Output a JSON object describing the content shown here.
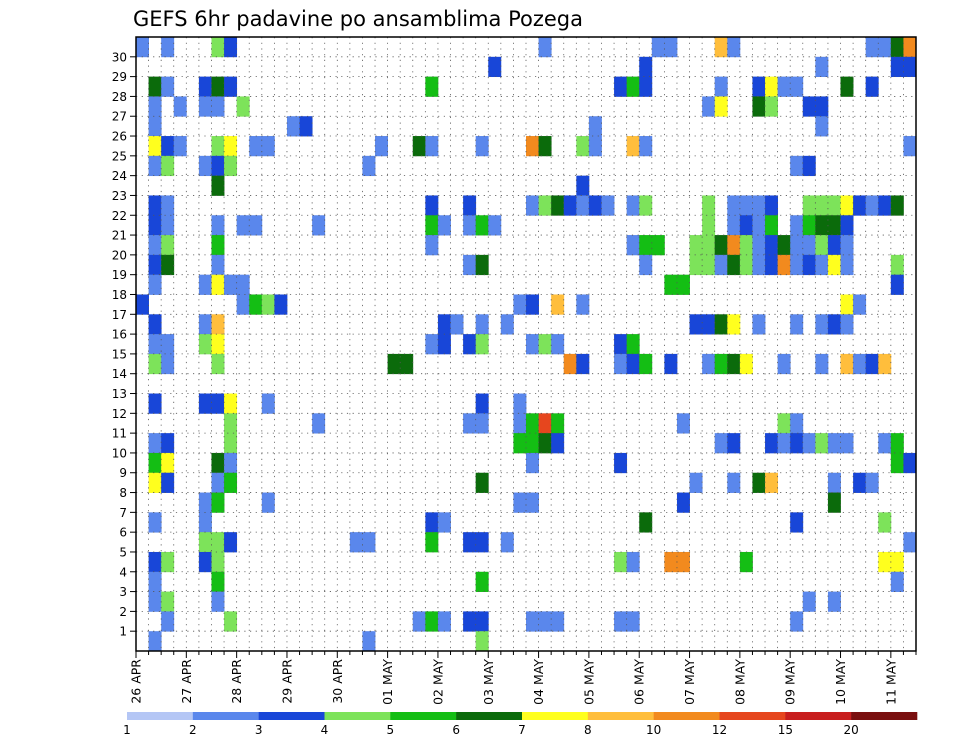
{
  "chart_data": {
    "type": "heatmap",
    "title": "GEFS 6hr padavine po ansamblima Pozega",
    "x_labels": [
      "26 APR",
      "27 APR",
      "28 APR",
      "29 APR",
      "30 APR",
      "01 MAY",
      "02 MAY",
      "03 MAY",
      "04 MAY",
      "05 MAY",
      "06 MAY",
      "07 MAY",
      "08 MAY",
      "09 MAY",
      "10 MAY",
      "11 MAY"
    ],
    "y_ticks": [
      1,
      2,
      3,
      4,
      5,
      6,
      7,
      8,
      9,
      10,
      11,
      12,
      13,
      14,
      15,
      16,
      17,
      18,
      19,
      20,
      21,
      22,
      23,
      24,
      25,
      26,
      27,
      28,
      29,
      30
    ],
    "steps_per_day": 4,
    "legend": {
      "labels": [
        "1",
        "2",
        "3",
        "4",
        "5",
        "6",
        "7",
        "8",
        "10",
        "12",
        "15",
        "20"
      ],
      "colors": [
        "#b4c6f5",
        "#5a87ec",
        "#1846d8",
        "#7de35a",
        "#14be14",
        "#0b6b0b",
        "#ffff1e",
        "#ffbe3c",
        "#f28a1e",
        "#e6461e",
        "#c81e1e",
        "#7a0f0f"
      ]
    },
    "grid": true,
    "cells": [
      [
        30,
        0,
        1
      ],
      [
        30,
        2,
        1
      ],
      [
        30,
        6,
        3
      ],
      [
        30,
        7,
        2
      ],
      [
        30,
        32,
        1
      ],
      [
        30,
        41,
        1
      ],
      [
        30,
        42,
        1
      ],
      [
        30,
        46,
        7
      ],
      [
        30,
        47,
        1
      ],
      [
        30,
        58,
        1
      ],
      [
        30,
        59,
        1
      ],
      [
        30,
        60,
        5
      ],
      [
        30,
        61,
        8
      ],
      [
        29,
        28,
        2
      ],
      [
        29,
        40,
        2
      ],
      [
        29,
        54,
        1
      ],
      [
        29,
        60,
        2
      ],
      [
        29,
        61,
        2
      ],
      [
        28,
        1,
        5
      ],
      [
        28,
        2,
        1
      ],
      [
        28,
        5,
        2
      ],
      [
        28,
        6,
        5
      ],
      [
        28,
        7,
        2
      ],
      [
        28,
        23,
        4
      ],
      [
        28,
        38,
        2
      ],
      [
        28,
        39,
        4
      ],
      [
        28,
        40,
        2
      ],
      [
        28,
        46,
        1
      ],
      [
        28,
        49,
        2
      ],
      [
        28,
        50,
        6
      ],
      [
        28,
        51,
        1
      ],
      [
        28,
        52,
        1
      ],
      [
        28,
        56,
        5
      ],
      [
        28,
        58,
        2
      ],
      [
        27,
        1,
        1
      ],
      [
        27,
        3,
        1
      ],
      [
        27,
        5,
        1
      ],
      [
        27,
        6,
        1
      ],
      [
        27,
        8,
        3
      ],
      [
        27,
        45,
        1
      ],
      [
        27,
        46,
        6
      ],
      [
        27,
        49,
        5
      ],
      [
        27,
        50,
        3
      ],
      [
        27,
        53,
        2
      ],
      [
        27,
        54,
        2
      ],
      [
        26,
        1,
        1
      ],
      [
        26,
        12,
        1
      ],
      [
        26,
        13,
        2
      ],
      [
        26,
        36,
        1
      ],
      [
        26,
        54,
        1
      ],
      [
        25,
        1,
        6
      ],
      [
        25,
        2,
        2
      ],
      [
        25,
        3,
        1
      ],
      [
        25,
        6,
        3
      ],
      [
        25,
        7,
        6
      ],
      [
        25,
        9,
        1
      ],
      [
        25,
        10,
        1
      ],
      [
        25,
        19,
        1
      ],
      [
        25,
        22,
        5
      ],
      [
        25,
        23,
        1
      ],
      [
        25,
        27,
        1
      ],
      [
        25,
        31,
        8
      ],
      [
        25,
        32,
        5
      ],
      [
        25,
        35,
        3
      ],
      [
        25,
        36,
        1
      ],
      [
        25,
        39,
        7
      ],
      [
        25,
        40,
        1
      ],
      [
        25,
        61,
        1
      ],
      [
        24,
        1,
        1
      ],
      [
        24,
        2,
        3
      ],
      [
        24,
        5,
        1
      ],
      [
        24,
        6,
        2
      ],
      [
        24,
        7,
        3
      ],
      [
        24,
        18,
        1
      ],
      [
        24,
        52,
        1
      ],
      [
        24,
        53,
        2
      ],
      [
        23,
        6,
        5
      ],
      [
        23,
        35,
        2
      ],
      [
        22,
        1,
        2
      ],
      [
        22,
        2,
        1
      ],
      [
        22,
        23,
        2
      ],
      [
        22,
        26,
        2
      ],
      [
        22,
        31,
        1
      ],
      [
        22,
        32,
        3
      ],
      [
        22,
        33,
        5
      ],
      [
        22,
        34,
        2
      ],
      [
        22,
        35,
        1
      ],
      [
        22,
        36,
        2
      ],
      [
        22,
        37,
        1
      ],
      [
        22,
        39,
        1
      ],
      [
        22,
        40,
        3
      ],
      [
        22,
        45,
        3
      ],
      [
        22,
        47,
        1
      ],
      [
        22,
        48,
        1
      ],
      [
        22,
        49,
        1
      ],
      [
        22,
        50,
        2
      ],
      [
        22,
        53,
        3
      ],
      [
        22,
        54,
        3
      ],
      [
        22,
        55,
        3
      ],
      [
        22,
        56,
        6
      ],
      [
        22,
        57,
        2
      ],
      [
        22,
        58,
        1
      ],
      [
        22,
        59,
        2
      ],
      [
        22,
        60,
        5
      ],
      [
        21,
        1,
        2
      ],
      [
        21,
        2,
        1
      ],
      [
        21,
        6,
        1
      ],
      [
        21,
        8,
        1
      ],
      [
        21,
        9,
        1
      ],
      [
        21,
        14,
        1
      ],
      [
        21,
        23,
        4
      ],
      [
        21,
        24,
        1
      ],
      [
        21,
        26,
        1
      ],
      [
        21,
        27,
        4
      ],
      [
        21,
        28,
        1
      ],
      [
        21,
        45,
        3
      ],
      [
        21,
        47,
        1
      ],
      [
        21,
        48,
        2
      ],
      [
        21,
        49,
        1
      ],
      [
        21,
        50,
        4
      ],
      [
        21,
        52,
        1
      ],
      [
        21,
        53,
        4
      ],
      [
        21,
        54,
        5
      ],
      [
        21,
        55,
        5
      ],
      [
        21,
        56,
        2
      ],
      [
        20,
        1,
        1
      ],
      [
        20,
        2,
        3
      ],
      [
        20,
        6,
        4
      ],
      [
        20,
        23,
        1
      ],
      [
        20,
        39,
        1
      ],
      [
        20,
        40,
        4
      ],
      [
        20,
        41,
        4
      ],
      [
        20,
        44,
        3
      ],
      [
        20,
        45,
        3
      ],
      [
        20,
        46,
        5
      ],
      [
        20,
        47,
        8
      ],
      [
        20,
        48,
        3
      ],
      [
        20,
        49,
        1
      ],
      [
        20,
        50,
        2
      ],
      [
        20,
        51,
        5
      ],
      [
        20,
        52,
        1
      ],
      [
        20,
        53,
        1
      ],
      [
        20,
        54,
        3
      ],
      [
        20,
        55,
        2
      ],
      [
        20,
        56,
        1
      ],
      [
        19,
        1,
        2
      ],
      [
        19,
        2,
        5
      ],
      [
        19,
        6,
        1
      ],
      [
        19,
        26,
        1
      ],
      [
        19,
        27,
        5
      ],
      [
        19,
        40,
        1
      ],
      [
        19,
        44,
        3
      ],
      [
        19,
        45,
        3
      ],
      [
        19,
        46,
        1
      ],
      [
        19,
        47,
        5
      ],
      [
        19,
        48,
        3
      ],
      [
        19,
        49,
        1
      ],
      [
        19,
        50,
        2
      ],
      [
        19,
        51,
        8
      ],
      [
        19,
        52,
        1
      ],
      [
        19,
        53,
        2
      ],
      [
        19,
        54,
        1
      ],
      [
        19,
        55,
        6
      ],
      [
        19,
        56,
        1
      ],
      [
        19,
        60,
        3
      ],
      [
        18,
        1,
        1
      ],
      [
        18,
        5,
        1
      ],
      [
        18,
        6,
        6
      ],
      [
        18,
        7,
        1
      ],
      [
        18,
        8,
        1
      ],
      [
        18,
        42,
        4
      ],
      [
        18,
        43,
        4
      ],
      [
        18,
        60,
        2
      ],
      [
        17,
        0,
        2
      ],
      [
        17,
        8,
        1
      ],
      [
        17,
        9,
        4
      ],
      [
        17,
        10,
        3
      ],
      [
        17,
        11,
        2
      ],
      [
        17,
        30,
        1
      ],
      [
        17,
        31,
        2
      ],
      [
        17,
        33,
        7
      ],
      [
        17,
        35,
        1
      ],
      [
        17,
        56,
        6
      ],
      [
        17,
        57,
        1
      ],
      [
        16,
        1,
        2
      ],
      [
        16,
        5,
        1
      ],
      [
        16,
        6,
        7
      ],
      [
        16,
        24,
        2
      ],
      [
        16,
        25,
        1
      ],
      [
        16,
        27,
        1
      ],
      [
        16,
        29,
        1
      ],
      [
        16,
        44,
        2
      ],
      [
        16,
        45,
        2
      ],
      [
        16,
        46,
        5
      ],
      [
        16,
        47,
        6
      ],
      [
        16,
        49,
        1
      ],
      [
        16,
        52,
        1
      ],
      [
        16,
        54,
        1
      ],
      [
        16,
        55,
        2
      ],
      [
        16,
        56,
        1
      ],
      [
        15,
        1,
        1
      ],
      [
        15,
        2,
        1
      ],
      [
        15,
        5,
        3
      ],
      [
        15,
        6,
        6
      ],
      [
        15,
        23,
        1
      ],
      [
        15,
        24,
        2
      ],
      [
        15,
        26,
        2
      ],
      [
        15,
        27,
        3
      ],
      [
        15,
        31,
        1
      ],
      [
        15,
        32,
        3
      ],
      [
        15,
        33,
        1
      ],
      [
        15,
        38,
        2
      ],
      [
        15,
        39,
        4
      ],
      [
        14,
        1,
        3
      ],
      [
        14,
        2,
        1
      ],
      [
        14,
        6,
        3
      ],
      [
        14,
        20,
        5
      ],
      [
        14,
        21,
        5
      ],
      [
        14,
        34,
        8
      ],
      [
        14,
        35,
        2
      ],
      [
        14,
        38,
        1
      ],
      [
        14,
        39,
        2
      ],
      [
        14,
        40,
        4
      ],
      [
        14,
        42,
        2
      ],
      [
        14,
        45,
        1
      ],
      [
        14,
        46,
        4
      ],
      [
        14,
        47,
        5
      ],
      [
        14,
        48,
        6
      ],
      [
        14,
        51,
        1
      ],
      [
        14,
        54,
        1
      ],
      [
        14,
        56,
        7
      ],
      [
        14,
        57,
        1
      ],
      [
        14,
        58,
        2
      ],
      [
        14,
        59,
        7
      ],
      [
        12,
        1,
        2
      ],
      [
        12,
        5,
        2
      ],
      [
        12,
        6,
        2
      ],
      [
        12,
        7,
        6
      ],
      [
        12,
        10,
        1
      ],
      [
        12,
        27,
        2
      ],
      [
        12,
        30,
        1
      ],
      [
        11,
        7,
        3
      ],
      [
        11,
        14,
        1
      ],
      [
        11,
        26,
        1
      ],
      [
        11,
        27,
        1
      ],
      [
        11,
        30,
        1
      ],
      [
        11,
        31,
        4
      ],
      [
        11,
        32,
        9
      ],
      [
        11,
        33,
        4
      ],
      [
        11,
        43,
        1
      ],
      [
        11,
        51,
        3
      ],
      [
        11,
        52,
        1
      ],
      [
        10,
        1,
        1
      ],
      [
        10,
        2,
        2
      ],
      [
        10,
        7,
        3
      ],
      [
        10,
        30,
        4
      ],
      [
        10,
        31,
        4
      ],
      [
        10,
        32,
        5
      ],
      [
        10,
        33,
        2
      ],
      [
        10,
        46,
        1
      ],
      [
        10,
        47,
        2
      ],
      [
        10,
        50,
        2
      ],
      [
        10,
        51,
        1
      ],
      [
        10,
        52,
        2
      ],
      [
        10,
        53,
        1
      ],
      [
        10,
        54,
        3
      ],
      [
        10,
        55,
        1
      ],
      [
        10,
        56,
        1
      ],
      [
        10,
        59,
        1
      ],
      [
        10,
        60,
        4
      ],
      [
        9,
        1,
        4
      ],
      [
        9,
        2,
        6
      ],
      [
        9,
        6,
        5
      ],
      [
        9,
        7,
        1
      ],
      [
        9,
        31,
        1
      ],
      [
        9,
        38,
        2
      ],
      [
        9,
        60,
        4
      ],
      [
        9,
        61,
        2
      ],
      [
        8,
        1,
        6
      ],
      [
        8,
        2,
        2
      ],
      [
        8,
        6,
        1
      ],
      [
        8,
        7,
        4
      ],
      [
        8,
        27,
        5
      ],
      [
        8,
        44,
        1
      ],
      [
        8,
        47,
        1
      ],
      [
        8,
        49,
        5
      ],
      [
        8,
        50,
        7
      ],
      [
        8,
        55,
        1
      ],
      [
        8,
        57,
        2
      ],
      [
        8,
        58,
        1
      ],
      [
        7,
        5,
        1
      ],
      [
        7,
        6,
        4
      ],
      [
        7,
        10,
        1
      ],
      [
        7,
        30,
        1
      ],
      [
        7,
        31,
        1
      ],
      [
        7,
        43,
        2
      ],
      [
        7,
        55,
        5
      ],
      [
        6,
        1,
        1
      ],
      [
        6,
        5,
        1
      ],
      [
        6,
        23,
        2
      ],
      [
        6,
        24,
        1
      ],
      [
        6,
        40,
        5
      ],
      [
        6,
        52,
        2
      ],
      [
        6,
        59,
        3
      ],
      [
        5,
        5,
        3
      ],
      [
        5,
        6,
        3
      ],
      [
        5,
        7,
        2
      ],
      [
        5,
        17,
        1
      ],
      [
        5,
        18,
        1
      ],
      [
        5,
        23,
        4
      ],
      [
        5,
        26,
        2
      ],
      [
        5,
        27,
        2
      ],
      [
        5,
        29,
        1
      ],
      [
        5,
        61,
        1
      ],
      [
        4,
        1,
        2
      ],
      [
        4,
        2,
        3
      ],
      [
        4,
        5,
        2
      ],
      [
        4,
        6,
        3
      ],
      [
        4,
        38,
        3
      ],
      [
        4,
        39,
        1
      ],
      [
        4,
        42,
        8
      ],
      [
        4,
        43,
        8
      ],
      [
        4,
        48,
        4
      ],
      [
        4,
        59,
        6
      ],
      [
        4,
        60,
        6
      ],
      [
        3,
        1,
        1
      ],
      [
        3,
        6,
        4
      ],
      [
        3,
        27,
        4
      ],
      [
        3,
        60,
        1
      ],
      [
        2,
        1,
        1
      ],
      [
        2,
        2,
        3
      ],
      [
        2,
        6,
        1
      ],
      [
        2,
        53,
        1
      ],
      [
        2,
        55,
        1
      ],
      [
        1,
        2,
        1
      ],
      [
        1,
        7,
        3
      ],
      [
        1,
        22,
        1
      ],
      [
        1,
        23,
        4
      ],
      [
        1,
        24,
        1
      ],
      [
        1,
        26,
        2
      ],
      [
        1,
        27,
        2
      ],
      [
        1,
        31,
        1
      ],
      [
        1,
        32,
        1
      ],
      [
        1,
        33,
        1
      ],
      [
        1,
        38,
        1
      ],
      [
        1,
        39,
        1
      ],
      [
        1,
        52,
        1
      ],
      [
        0,
        1,
        1
      ],
      [
        0,
        18,
        1
      ],
      [
        0,
        27,
        3
      ]
    ]
  }
}
